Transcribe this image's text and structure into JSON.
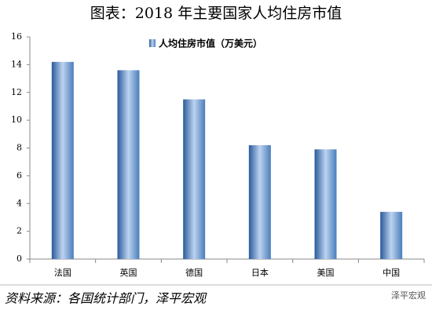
{
  "chart_data": {
    "type": "bar",
    "title": "图表：2018 年主要国家人均住房市值",
    "categories": [
      "法国",
      "英国",
      "德国",
      "日本",
      "美国",
      "中国"
    ],
    "series": [
      {
        "name": "人均住房市值（万美元）",
        "color": "#4a7ebb",
        "values": [
          14.2,
          13.6,
          11.5,
          8.2,
          7.9,
          3.4
        ]
      }
    ],
    "ylim": [
      0,
      16
    ],
    "yticks": [
      0,
      2,
      4,
      6,
      8,
      10,
      12,
      14,
      16
    ],
    "grid": false,
    "legend": "top",
    "source": "资料来源：各国统计部门，泽平宏观",
    "watermark": "泽平宏观"
  }
}
